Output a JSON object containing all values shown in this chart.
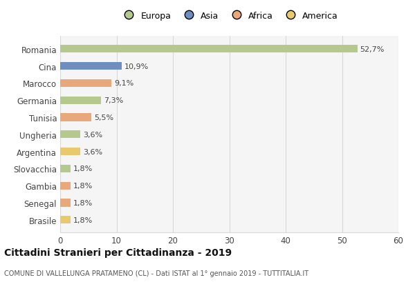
{
  "categories": [
    "Romania",
    "Cina",
    "Marocco",
    "Germania",
    "Tunisia",
    "Ungheria",
    "Argentina",
    "Slovacchia",
    "Gambia",
    "Senegal",
    "Brasile"
  ],
  "values": [
    52.7,
    10.9,
    9.1,
    7.3,
    5.5,
    3.6,
    3.6,
    1.8,
    1.8,
    1.8,
    1.8
  ],
  "labels": [
    "52,7%",
    "10,9%",
    "9,1%",
    "7,3%",
    "5,5%",
    "3,6%",
    "3,6%",
    "1,8%",
    "1,8%",
    "1,8%",
    "1,8%"
  ],
  "colors": [
    "#b5c98e",
    "#6d8ebf",
    "#e8a87c",
    "#b5c98e",
    "#e8a87c",
    "#b5c98e",
    "#e8c96d",
    "#b5c98e",
    "#e8a87c",
    "#e8a87c",
    "#e8c96d"
  ],
  "legend_labels": [
    "Europa",
    "Asia",
    "Africa",
    "America"
  ],
  "legend_colors": [
    "#b5c98e",
    "#6d8ebf",
    "#e8a87c",
    "#e8c96d"
  ],
  "title": "Cittadini Stranieri per Cittadinanza - 2019",
  "subtitle": "COMUNE DI VALLELUNGA PRATAMENO (CL) - Dati ISTAT al 1° gennaio 2019 - TUTTITALIA.IT",
  "xlim": [
    0,
    60
  ],
  "xticks": [
    0,
    10,
    20,
    30,
    40,
    50,
    60
  ],
  "background_color": "#ffffff",
  "plot_background_color": "#f5f5f5",
  "grid_color": "#d8d8d8"
}
